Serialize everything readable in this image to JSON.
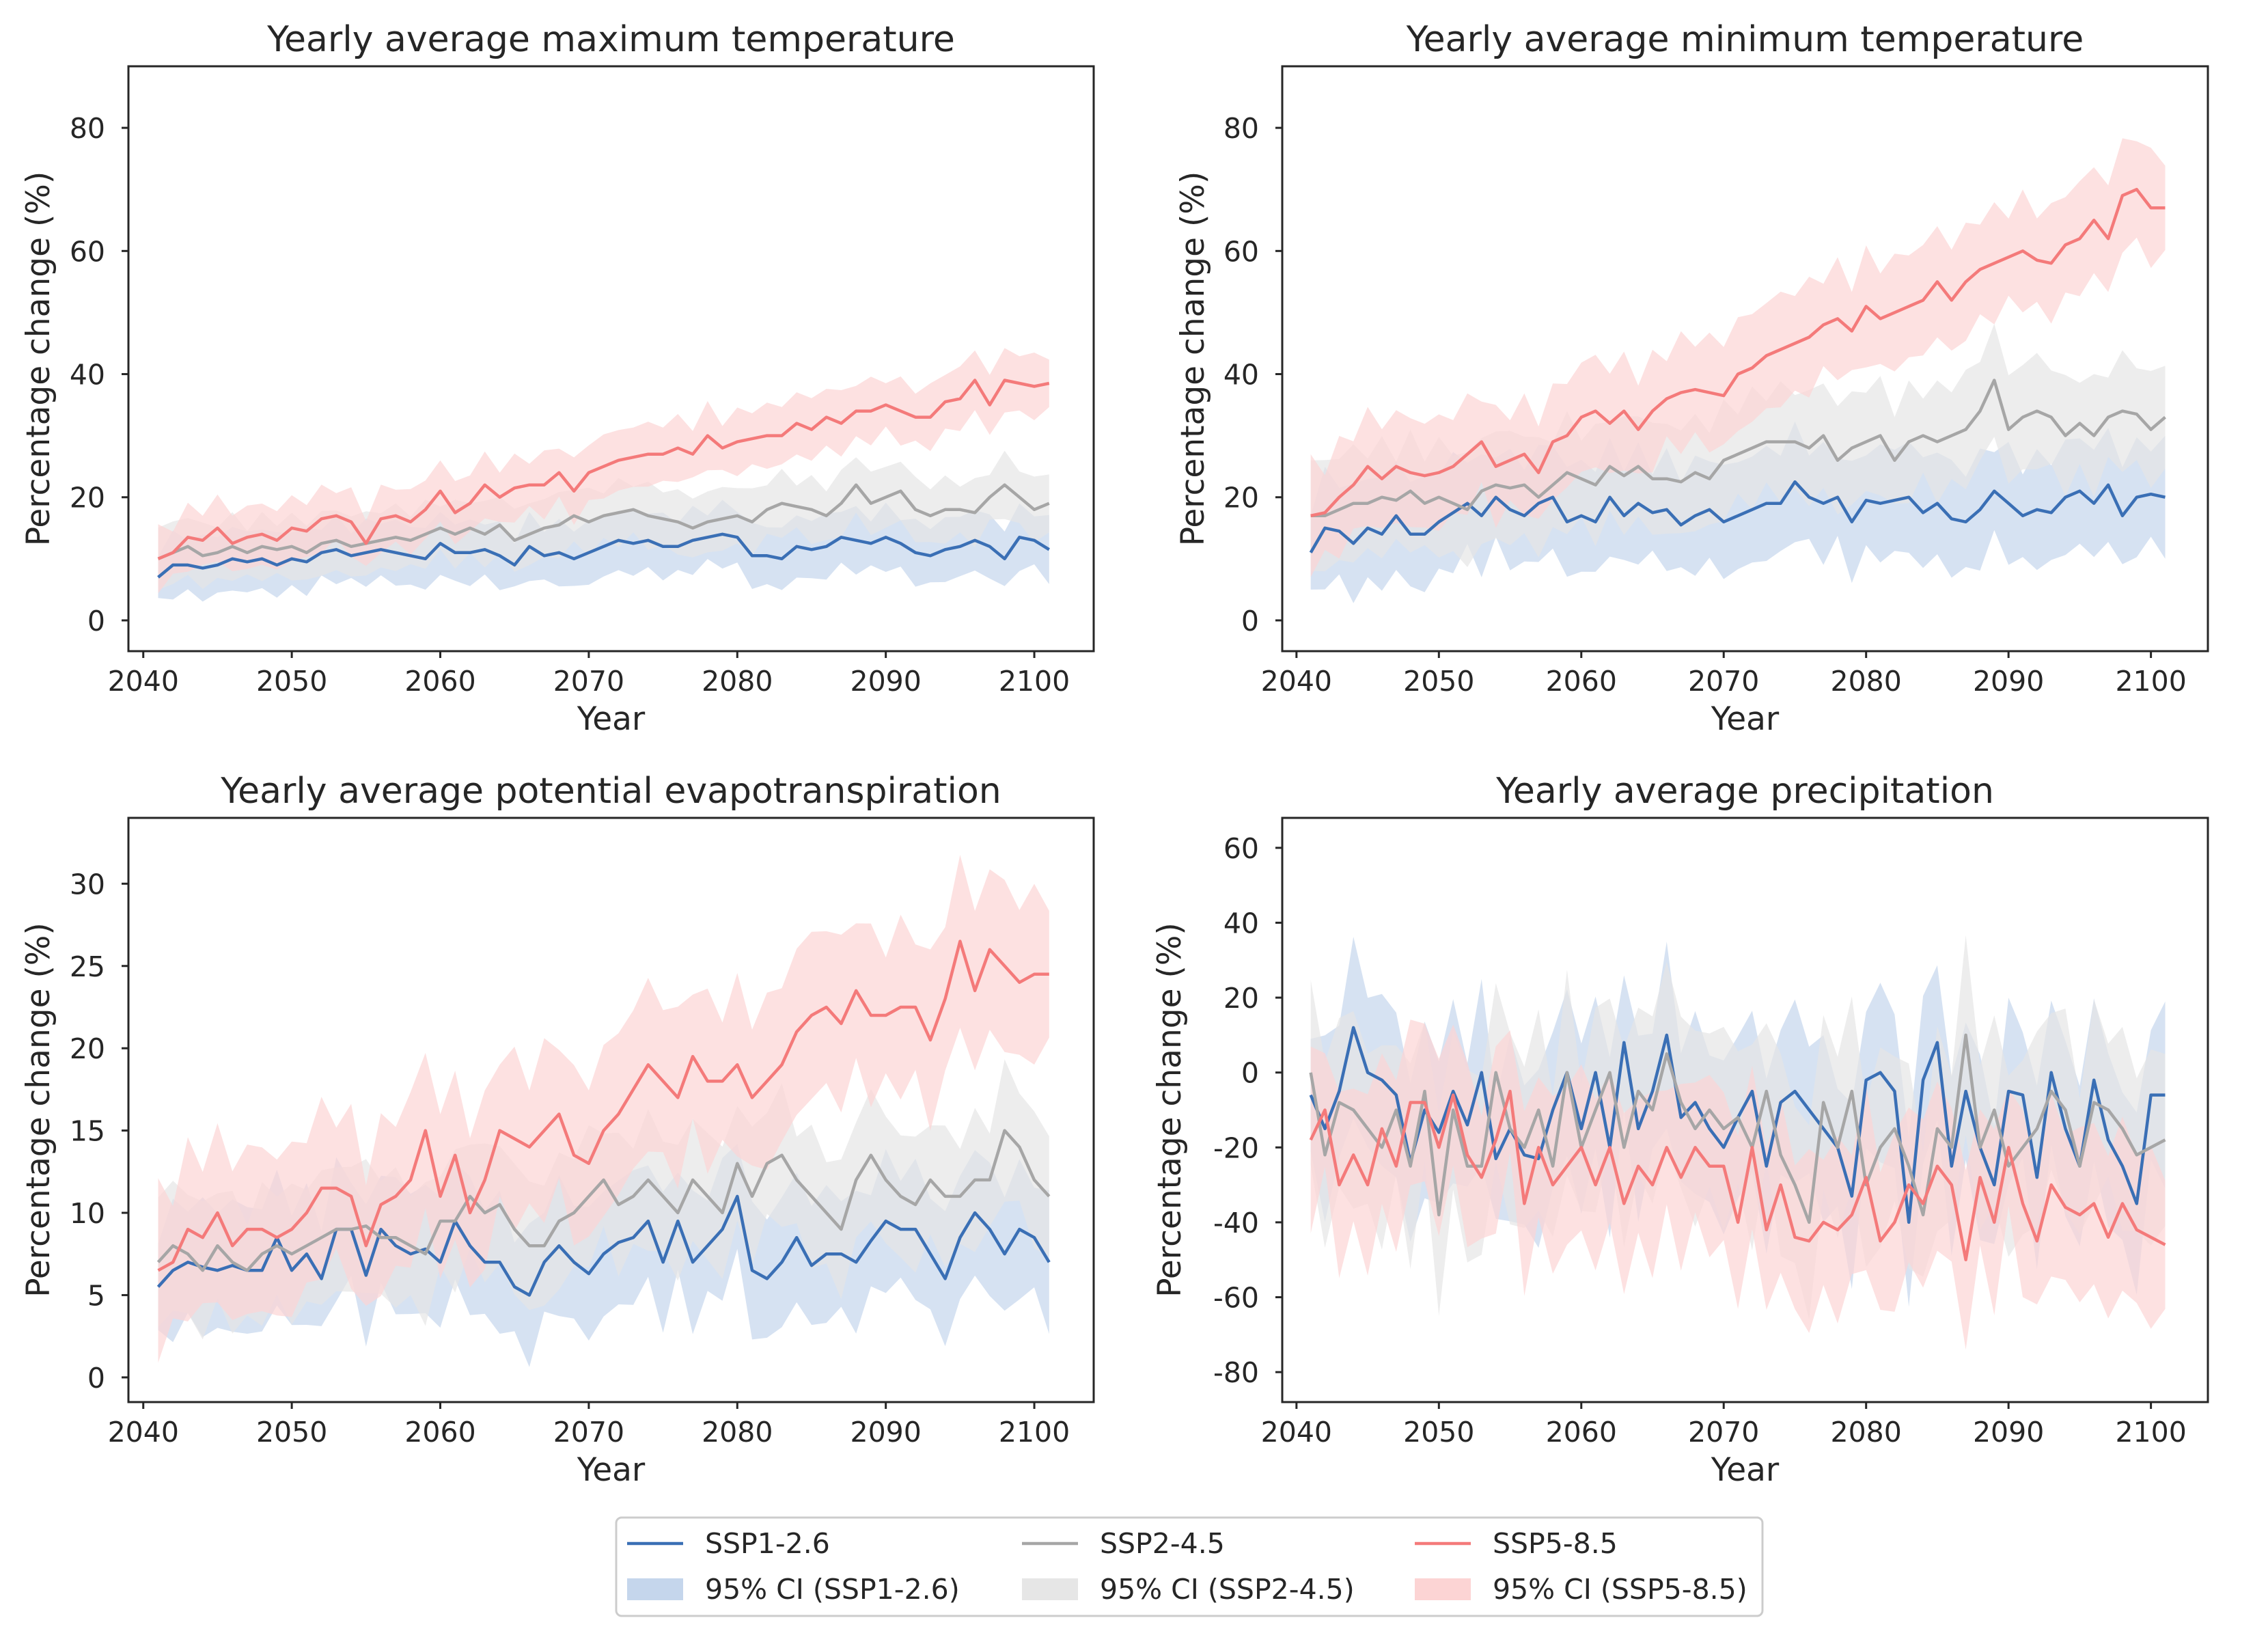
{
  "colors": {
    "ssp126": "#3a6fb5",
    "ssp245": "#a6a6a6",
    "ssp585": "#f47a7a",
    "ci126": "#c5d6ec",
    "ci245": "#e6e6e6",
    "ci585": "#fcd4d4",
    "axes": "#262626"
  },
  "legend": {
    "entries": [
      {
        "label": "SSP1-2.6",
        "kind": "line",
        "color_key": "ssp126"
      },
      {
        "label": "SSP2-4.5",
        "kind": "line",
        "color_key": "ssp245"
      },
      {
        "label": "SSP5-8.5",
        "kind": "line",
        "color_key": "ssp585"
      },
      {
        "label": "95% CI (SSP1-2.6)",
        "kind": "patch",
        "color_key": "ci126"
      },
      {
        "label": "95% CI (SSP2-4.5)",
        "kind": "patch",
        "color_key": "ci245"
      },
      {
        "label": "95% CI (SSP5-8.5)",
        "kind": "patch",
        "color_key": "ci585"
      }
    ]
  },
  "chart_data": [
    {
      "type": "line",
      "title": "Yearly average maximum temperature",
      "xlabel": "Year",
      "ylabel": "Percentage change (%)",
      "xlim": [
        2039,
        2104
      ],
      "ylim": [
        -5,
        90
      ],
      "xticks": [
        2040,
        2050,
        2060,
        2070,
        2080,
        2090,
        2100
      ],
      "yticks": [
        0,
        20,
        40,
        60,
        80
      ],
      "x_start": 2041,
      "series": [
        {
          "name": "SSP1-2.6",
          "color_key": "ssp126",
          "ci_color_key": "ci126",
          "values": [
            7,
            9,
            9,
            8.5,
            9,
            10,
            9.5,
            10,
            9,
            10,
            9.5,
            11,
            11.5,
            10.5,
            11,
            11.5,
            11,
            10.5,
            10,
            12.5,
            11,
            11,
            11.5,
            10.5,
            9,
            12,
            10.5,
            11,
            10,
            11,
            12,
            13,
            12.5,
            13,
            12,
            12,
            13,
            13.5,
            14,
            13.5,
            10.5,
            10.5,
            10,
            12,
            11.5,
            12,
            13.5,
            13,
            12.5,
            13.5,
            12.5,
            11,
            10.5,
            11.5,
            12,
            13,
            12,
            10,
            13.5,
            13,
            11.5
          ],
          "ci_half": 4.5
        },
        {
          "name": "SSP2-4.5",
          "color_key": "ssp245",
          "ci_color_key": "ci245",
          "values": [
            10,
            11,
            12,
            10.5,
            11,
            12,
            11,
            12,
            11.5,
            12,
            11,
            12.5,
            13,
            12,
            12.5,
            13,
            13.5,
            13,
            14,
            15,
            14,
            15,
            14,
            15.5,
            13,
            14,
            15,
            15.5,
            17,
            16,
            17,
            17.5,
            18,
            17,
            16.5,
            16,
            15,
            16,
            16.5,
            17,
            16,
            18,
            19,
            18.5,
            18,
            17,
            19,
            22,
            19,
            20,
            21,
            18,
            17,
            18,
            18,
            17.5,
            20,
            22,
            20,
            18,
            19
          ],
          "ci_half": 4.5
        },
        {
          "name": "SSP5-8.5",
          "color_key": "ssp585",
          "ci_color_key": "ci585",
          "values": [
            10,
            11,
            13.5,
            13,
            15,
            12.5,
            13.5,
            14,
            13,
            15,
            14.5,
            16.5,
            17,
            16,
            12.5,
            16.5,
            17,
            16,
            18,
            21,
            17.5,
            19,
            22,
            20,
            21.5,
            22,
            22,
            24,
            21,
            24,
            25,
            26,
            26.5,
            27,
            27,
            28,
            27,
            30,
            28,
            29,
            29.5,
            30,
            30,
            32,
            31,
            33,
            32,
            34,
            34,
            35,
            34,
            33,
            33,
            35.5,
            36,
            39,
            35,
            39,
            38.5,
            38,
            38.5
          ],
          "ci_half": 4.5
        }
      ]
    },
    {
      "type": "line",
      "title": "Yearly average minimum temperature",
      "xlabel": "Year",
      "ylabel": "Percentage change (%)",
      "xlim": [
        2039,
        2104
      ],
      "ylim": [
        -5,
        90
      ],
      "xticks": [
        2040,
        2050,
        2060,
        2070,
        2080,
        2090,
        2100
      ],
      "yticks": [
        0,
        20,
        40,
        60,
        80
      ],
      "x_start": 2041,
      "series": [
        {
          "name": "SSP1-2.6",
          "color_key": "ssp126",
          "ci_color_key": "ci126",
          "values": [
            11,
            15,
            14.5,
            12.5,
            15,
            14,
            17,
            14,
            14,
            16,
            17.5,
            19,
            17,
            20,
            18,
            17,
            19,
            20,
            16,
            17,
            16,
            20,
            17,
            19,
            17.5,
            18,
            15.5,
            17,
            18,
            16,
            17,
            18,
            19,
            19,
            22.5,
            20,
            19,
            20,
            16,
            19.5,
            19,
            19.5,
            20,
            17.5,
            19,
            16.5,
            16,
            18,
            21,
            19,
            17,
            18,
            17.5,
            20,
            21,
            19,
            22,
            17,
            20,
            20.5,
            20
          ],
          "ci_half": 8
        },
        {
          "name": "SSP2-4.5",
          "color_key": "ssp245",
          "ci_color_key": "ci245",
          "values": [
            17,
            17,
            18,
            19,
            19,
            20,
            19.5,
            21,
            19,
            20,
            19,
            18,
            21,
            22,
            21.5,
            22,
            20,
            22,
            24,
            23,
            22,
            25,
            23.5,
            25,
            23,
            23,
            22.5,
            24,
            23,
            26,
            27,
            28,
            29,
            29,
            29,
            28,
            30,
            26,
            28,
            29,
            30,
            26,
            29,
            30,
            29,
            30,
            31,
            34,
            39,
            31,
            33,
            34,
            33,
            30,
            32,
            30,
            33,
            34,
            33.5,
            31,
            33
          ],
          "ci_half": 8
        },
        {
          "name": "SSP5-8.5",
          "color_key": "ssp585",
          "ci_color_key": "ci585",
          "values": [
            17,
            17.5,
            20,
            22,
            25,
            23,
            25,
            24,
            23.5,
            24,
            25,
            27,
            29,
            25,
            26,
            27,
            24,
            29,
            30,
            33,
            34,
            32,
            34,
            31,
            34,
            36,
            37,
            37.5,
            37,
            36.5,
            40,
            41,
            43,
            44,
            45,
            46,
            48,
            49,
            47,
            51,
            49,
            50,
            51,
            52,
            55,
            52,
            55,
            57,
            58,
            59,
            60,
            58.5,
            58,
            61,
            62,
            65,
            62,
            69,
            70,
            67,
            67
          ],
          "ci_half": 8
        }
      ]
    },
    {
      "type": "line",
      "title": "Yearly average potential evapotranspiration",
      "xlabel": "Year",
      "ylabel": "Percentage change (%)",
      "xlim": [
        2039,
        2104
      ],
      "ylim": [
        -1.5,
        34
      ],
      "xticks": [
        2040,
        2050,
        2060,
        2070,
        2080,
        2090,
        2100
      ],
      "yticks": [
        0,
        5,
        10,
        15,
        20,
        25,
        30
      ],
      "x_start": 2041,
      "series": [
        {
          "name": "SSP1-2.6",
          "color_key": "ssp126",
          "ci_color_key": "ci126",
          "values": [
            5.5,
            6.5,
            7,
            6.7,
            6.5,
            6.8,
            6.5,
            6.5,
            8.5,
            6.5,
            7.5,
            6,
            9,
            9,
            6.2,
            9,
            8,
            7.5,
            7.8,
            7,
            9.5,
            8,
            7,
            7,
            5.5,
            5,
            7,
            8,
            7,
            6.3,
            7.5,
            8.2,
            8.5,
            9.5,
            7,
            9.5,
            7,
            8,
            9,
            11,
            6.5,
            6,
            7,
            8.5,
            6.8,
            7.5,
            7.5,
            7,
            8.3,
            9.5,
            9,
            9,
            7.5,
            6,
            8.5,
            10,
            9,
            7.5,
            9,
            8.5,
            7
          ],
          "ci_half": 3.5
        },
        {
          "name": "SSP2-4.5",
          "color_key": "ssp245",
          "ci_color_key": "ci245",
          "values": [
            7,
            8,
            7.5,
            6.5,
            8,
            7,
            6.5,
            7.5,
            8,
            7.5,
            8,
            8.5,
            9,
            9,
            9.2,
            8.5,
            8.5,
            8,
            7.5,
            9.5,
            9.5,
            11,
            10,
            10.5,
            9,
            8,
            8,
            9.5,
            10,
            11,
            12,
            10.5,
            11,
            12,
            11,
            10,
            12,
            11,
            10,
            13,
            11,
            13,
            13.5,
            12,
            11,
            10,
            9,
            12,
            13.5,
            12,
            11,
            10.5,
            12,
            11,
            11,
            12,
            12,
            15,
            14,
            12,
            11
          ],
          "ci_half": 3.5
        },
        {
          "name": "SSP5-8.5",
          "color_key": "ssp585",
          "ci_color_key": "ci585",
          "values": [
            6.5,
            7,
            9,
            8.5,
            10,
            8,
            9,
            9,
            8.5,
            9,
            10,
            11.5,
            11.5,
            11,
            8,
            10.5,
            11,
            12,
            15,
            11,
            13.5,
            10,
            12,
            15,
            14.5,
            14,
            15,
            16,
            13.5,
            13,
            15,
            16,
            17.5,
            19,
            18,
            17,
            19.5,
            18,
            18,
            19,
            17,
            18,
            19,
            21,
            22,
            22.5,
            21.5,
            23.5,
            22,
            22,
            22.5,
            22.5,
            20.5,
            23,
            26.5,
            23.5,
            26,
            25,
            24,
            24.5,
            24.5
          ],
          "ci_half": 4.5
        }
      ]
    },
    {
      "type": "line",
      "title": "Yearly average precipitation",
      "xlabel": "Year",
      "ylabel": "Percentage change (%)",
      "xlim": [
        2039,
        2104
      ],
      "ylim": [
        -88,
        68
      ],
      "xticks": [
        2040,
        2050,
        2060,
        2070,
        2080,
        2090,
        2100
      ],
      "yticks": [
        -80,
        -60,
        -40,
        -20,
        0,
        20,
        40,
        60
      ],
      "x_start": 2041,
      "series": [
        {
          "name": "SSP1-2.6",
          "color_key": "ssp126",
          "ci_color_key": "ci126",
          "values": [
            -6,
            -15,
            -5,
            12,
            0,
            -2,
            -6,
            -24,
            -10,
            -16,
            -5,
            -14,
            0,
            -23,
            -15,
            -22,
            -23,
            -10,
            0,
            -15,
            0,
            -20,
            8,
            -15,
            -5,
            10,
            -12,
            -8,
            -15,
            -20,
            -12,
            -5,
            -25,
            -8,
            -5,
            -10,
            -15,
            -20,
            -33,
            -2,
            0,
            -5,
            -40,
            -2,
            8,
            -25,
            -5,
            -20,
            -30,
            -5,
            -6,
            -28,
            0,
            -15,
            -25,
            -2,
            -18,
            -25,
            -35,
            -6,
            -6
          ],
          "ci_half": 20
        },
        {
          "name": "SSP2-4.5",
          "color_key": "ssp245",
          "ci_color_key": "ci245",
          "values": [
            0,
            -22,
            -8,
            -10,
            -15,
            -20,
            -10,
            -25,
            -5,
            -38,
            -10,
            -25,
            -25,
            0,
            -15,
            -20,
            -10,
            -25,
            0,
            -20,
            -10,
            0,
            -20,
            -5,
            -10,
            5,
            -8,
            -15,
            -10,
            -15,
            -12,
            -20,
            -5,
            -22,
            -30,
            -40,
            -8,
            -20,
            -5,
            -30,
            -20,
            -15,
            -25,
            -38,
            -15,
            -20,
            10,
            -20,
            -10,
            -25,
            -20,
            -15,
            -5,
            -10,
            -25,
            -8,
            -10,
            -15,
            -22,
            -20,
            -18
          ],
          "ci_half": 22
        },
        {
          "name": "SSP5-8.5",
          "color_key": "ssp585",
          "ci_color_key": "ci585",
          "values": [
            -18,
            -10,
            -30,
            -22,
            -30,
            -15,
            -25,
            -8,
            -8,
            -20,
            -6,
            -22,
            -28,
            -18,
            -5,
            -35,
            -20,
            -30,
            -25,
            -20,
            -30,
            -20,
            -35,
            -25,
            -30,
            -20,
            -28,
            -20,
            -25,
            -25,
            -40,
            -20,
            -42,
            -30,
            -44,
            -45,
            -40,
            -42,
            -38,
            -28,
            -45,
            -40,
            -30,
            -35,
            -25,
            -30,
            -50,
            -28,
            -40,
            -20,
            -35,
            -45,
            -30,
            -36,
            -38,
            -35,
            -44,
            -35,
            -42,
            -44,
            -46
          ],
          "ci_half": 20
        }
      ]
    }
  ]
}
